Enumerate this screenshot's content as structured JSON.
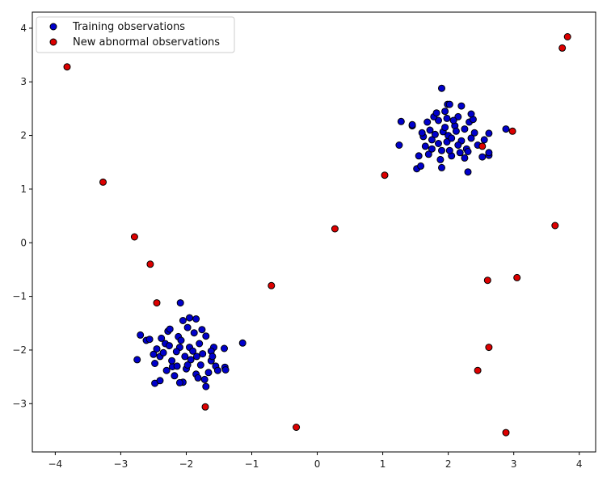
{
  "chart_data": {
    "type": "scatter",
    "xlim": [
      -4.35,
      4.25
    ],
    "ylim": [
      -3.9,
      4.3
    ],
    "xticks": [
      "−4",
      "−3",
      "−2",
      "−1",
      "0",
      "1",
      "2",
      "3",
      "4"
    ],
    "yticks": [
      "−3",
      "−2",
      "−1",
      "0",
      "1",
      "2",
      "3",
      "4"
    ],
    "xtick_values": [
      -4,
      -3,
      -2,
      -1,
      0,
      1,
      2,
      3,
      4
    ],
    "ytick_values": [
      -3,
      -2,
      -1,
      0,
      1,
      2,
      3,
      4
    ],
    "grid": false,
    "legend_position": "top-left",
    "series": [
      {
        "name": "Training observations",
        "color": "#0000cc",
        "edge": "#000000",
        "points": [
          [
            -1.75,
            -2.07
          ],
          [
            -2.32,
            -1.88
          ],
          [
            -1.98,
            -1.58
          ],
          [
            -2.21,
            -2.31
          ],
          [
            -1.62,
            -2.2
          ],
          [
            -2.1,
            -1.95
          ],
          [
            -1.85,
            -2.45
          ],
          [
            -2.4,
            -2.12
          ],
          [
            -1.93,
            -2.18
          ],
          [
            -2.05,
            -2.6
          ],
          [
            -1.7,
            -1.74
          ],
          [
            -2.28,
            -1.65
          ],
          [
            -2.15,
            -2.03
          ],
          [
            -1.8,
            -1.88
          ],
          [
            -2.45,
            -1.98
          ],
          [
            -1.55,
            -2.3
          ],
          [
            -2.0,
            -2.35
          ],
          [
            -2.22,
            -2.2
          ],
          [
            -1.88,
            -1.68
          ],
          [
            -2.12,
            -1.75
          ],
          [
            -1.66,
            -2.42
          ],
          [
            -2.35,
            -2.05
          ],
          [
            -1.95,
            -1.95
          ],
          [
            -2.05,
            -1.45
          ],
          [
            -1.78,
            -2.28
          ],
          [
            -2.18,
            -2.48
          ],
          [
            -1.58,
            -1.95
          ],
          [
            -2.48,
            -2.25
          ],
          [
            -1.9,
            -2.02
          ],
          [
            -2.02,
            -2.12
          ],
          [
            -1.72,
            -2.55
          ],
          [
            -2.3,
            -2.38
          ],
          [
            -2.08,
            -1.82
          ],
          [
            -1.84,
            -2.12
          ],
          [
            -2.38,
            -1.78
          ],
          [
            -1.62,
            -2.02
          ],
          [
            -1.98,
            -2.28
          ],
          [
            -2.26,
            -1.92
          ],
          [
            -1.76,
            -1.62
          ],
          [
            -2.14,
            -2.3
          ],
          [
            -2.09,
            -1.12
          ],
          [
            -2.61,
            -1.82
          ],
          [
            -2.7,
            -1.72
          ],
          [
            -2.75,
            -2.18
          ],
          [
            -2.56,
            -1.8
          ],
          [
            -2.48,
            -2.62
          ],
          [
            -2.4,
            -2.57
          ],
          [
            -2.1,
            -2.61
          ],
          [
            -1.85,
            -1.42
          ],
          [
            -1.41,
            -2.32
          ],
          [
            -1.4,
            -2.37
          ],
          [
            -1.42,
            -1.97
          ],
          [
            -1.14,
            -1.87
          ],
          [
            -1.7,
            -2.68
          ],
          [
            -1.52,
            -2.38
          ],
          [
            -1.95,
            -1.4
          ],
          [
            -2.25,
            -1.61
          ],
          [
            -1.6,
            -2.12
          ],
          [
            -2.5,
            -2.08
          ],
          [
            -1.82,
            -2.52
          ],
          [
            1.92,
            2.07
          ],
          [
            1.75,
            1.92
          ],
          [
            2.25,
            2.12
          ],
          [
            1.65,
            1.8
          ],
          [
            2.05,
            1.62
          ],
          [
            1.85,
            2.28
          ],
          [
            2.35,
            1.95
          ],
          [
            1.98,
            1.88
          ],
          [
            2.15,
            2.35
          ],
          [
            1.72,
            2.1
          ],
          [
            2.28,
            1.75
          ],
          [
            1.88,
            1.55
          ],
          [
            2.1,
            2.18
          ],
          [
            1.95,
            2.45
          ],
          [
            2.4,
            2.05
          ],
          [
            1.68,
            2.25
          ],
          [
            2.02,
            1.72
          ],
          [
            2.2,
            1.9
          ],
          [
            1.8,
            2.02
          ],
          [
            2.08,
            2.28
          ],
          [
            1.62,
            1.98
          ],
          [
            2.32,
            2.25
          ],
          [
            1.9,
            1.72
          ],
          [
            2.18,
            1.68
          ],
          [
            1.78,
            2.35
          ],
          [
            2.45,
            1.82
          ],
          [
            2.0,
            2.0
          ],
          [
            1.85,
            1.85
          ],
          [
            2.12,
            2.08
          ],
          [
            1.7,
            1.65
          ],
          [
            2.38,
            2.3
          ],
          [
            1.95,
            2.15
          ],
          [
            2.25,
            1.58
          ],
          [
            1.82,
            2.42
          ],
          [
            2.05,
            1.95
          ],
          [
            2.3,
            1.7
          ],
          [
            1.75,
            1.75
          ],
          [
            2.15,
            1.82
          ],
          [
            1.98,
            2.32
          ],
          [
            1.6,
            2.05
          ],
          [
            1.9,
            2.88
          ],
          [
            1.99,
            2.58
          ],
          [
            1.28,
            2.26
          ],
          [
            1.25,
            1.82
          ],
          [
            1.45,
            2.18
          ],
          [
            1.52,
            1.38
          ],
          [
            1.58,
            1.43
          ],
          [
            2.3,
            1.32
          ],
          [
            2.52,
            1.6
          ],
          [
            2.62,
            1.63
          ],
          [
            2.62,
            2.04
          ],
          [
            2.88,
            2.12
          ],
          [
            2.62,
            1.68
          ],
          [
            1.9,
            1.4
          ],
          [
            2.35,
            2.4
          ],
          [
            1.45,
            2.2
          ],
          [
            2.02,
            2.58
          ],
          [
            2.2,
            2.55
          ],
          [
            1.55,
            1.62
          ],
          [
            2.55,
            1.92
          ]
        ]
      },
      {
        "name": "New abnormal observations",
        "color": "#dd0000",
        "edge": "#000000",
        "points": [
          [
            -3.82,
            3.28
          ],
          [
            -3.27,
            1.13
          ],
          [
            -2.79,
            0.11
          ],
          [
            -2.55,
            -0.4
          ],
          [
            -2.45,
            -1.12
          ],
          [
            -1.71,
            -3.06
          ],
          [
            -0.7,
            -0.8
          ],
          [
            -0.32,
            -3.44
          ],
          [
            0.27,
            0.26
          ],
          [
            1.03,
            1.26
          ],
          [
            2.52,
            1.8
          ],
          [
            2.98,
            2.08
          ],
          [
            2.6,
            -0.7
          ],
          [
            2.62,
            -1.95
          ],
          [
            2.45,
            -2.38
          ],
          [
            2.88,
            -3.54
          ],
          [
            3.05,
            -0.65
          ],
          [
            3.63,
            0.32
          ],
          [
            3.74,
            3.63
          ],
          [
            3.82,
            3.84
          ]
        ]
      }
    ]
  }
}
